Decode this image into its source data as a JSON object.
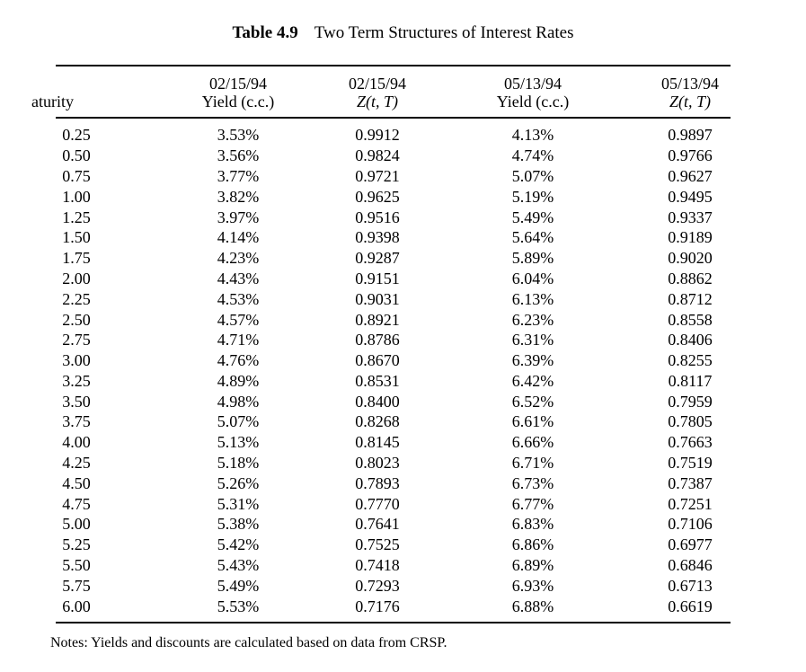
{
  "title": {
    "number": "Table 4.9",
    "text": "Two Term Structures of Interest Rates"
  },
  "header": {
    "maturity_label": "aturity",
    "columns": [
      {
        "date": "02/15/94",
        "measure": "Yield (c.c.)"
      },
      {
        "date": "02/15/94",
        "measure": "Z(t, T)"
      },
      {
        "date": "05/13/94",
        "measure": "Yield (c.c.)"
      },
      {
        "date": "05/13/94",
        "measure": "Z(t, T)"
      }
    ]
  },
  "rows": [
    [
      "0.25",
      "3.53%",
      "0.9912",
      "4.13%",
      "0.9897"
    ],
    [
      "0.50",
      "3.56%",
      "0.9824",
      "4.74%",
      "0.9766"
    ],
    [
      "0.75",
      "3.77%",
      "0.9721",
      "5.07%",
      "0.9627"
    ],
    [
      "1.00",
      "3.82%",
      "0.9625",
      "5.19%",
      "0.9495"
    ],
    [
      "1.25",
      "3.97%",
      "0.9516",
      "5.49%",
      "0.9337"
    ],
    [
      "1.50",
      "4.14%",
      "0.9398",
      "5.64%",
      "0.9189"
    ],
    [
      "1.75",
      "4.23%",
      "0.9287",
      "5.89%",
      "0.9020"
    ],
    [
      "2.00",
      "4.43%",
      "0.9151",
      "6.04%",
      "0.8862"
    ],
    [
      "2.25",
      "4.53%",
      "0.9031",
      "6.13%",
      "0.8712"
    ],
    [
      "2.50",
      "4.57%",
      "0.8921",
      "6.23%",
      "0.8558"
    ],
    [
      "2.75",
      "4.71%",
      "0.8786",
      "6.31%",
      "0.8406"
    ],
    [
      "3.00",
      "4.76%",
      "0.8670",
      "6.39%",
      "0.8255"
    ],
    [
      "3.25",
      "4.89%",
      "0.8531",
      "6.42%",
      "0.8117"
    ],
    [
      "3.50",
      "4.98%",
      "0.8400",
      "6.52%",
      "0.7959"
    ],
    [
      "3.75",
      "5.07%",
      "0.8268",
      "6.61%",
      "0.7805"
    ],
    [
      "4.00",
      "5.13%",
      "0.8145",
      "6.66%",
      "0.7663"
    ],
    [
      "4.25",
      "5.18%",
      "0.8023",
      "6.71%",
      "0.7519"
    ],
    [
      "4.50",
      "5.26%",
      "0.7893",
      "6.73%",
      "0.7387"
    ],
    [
      "4.75",
      "5.31%",
      "0.7770",
      "6.77%",
      "0.7251"
    ],
    [
      "5.00",
      "5.38%",
      "0.7641",
      "6.83%",
      "0.7106"
    ],
    [
      "5.25",
      "5.42%",
      "0.7525",
      "6.86%",
      "0.6977"
    ],
    [
      "5.50",
      "5.43%",
      "0.7418",
      "6.89%",
      "0.6846"
    ],
    [
      "5.75",
      "5.49%",
      "0.7293",
      "6.93%",
      "0.6713"
    ],
    [
      "6.00",
      "5.53%",
      "0.7176",
      "6.88%",
      "0.6619"
    ]
  ],
  "notes": "Notes: Yields and discounts are calculated based on data from CRSP.",
  "colors": {
    "text": "#000000",
    "background": "#ffffff",
    "rule": "#000000"
  }
}
